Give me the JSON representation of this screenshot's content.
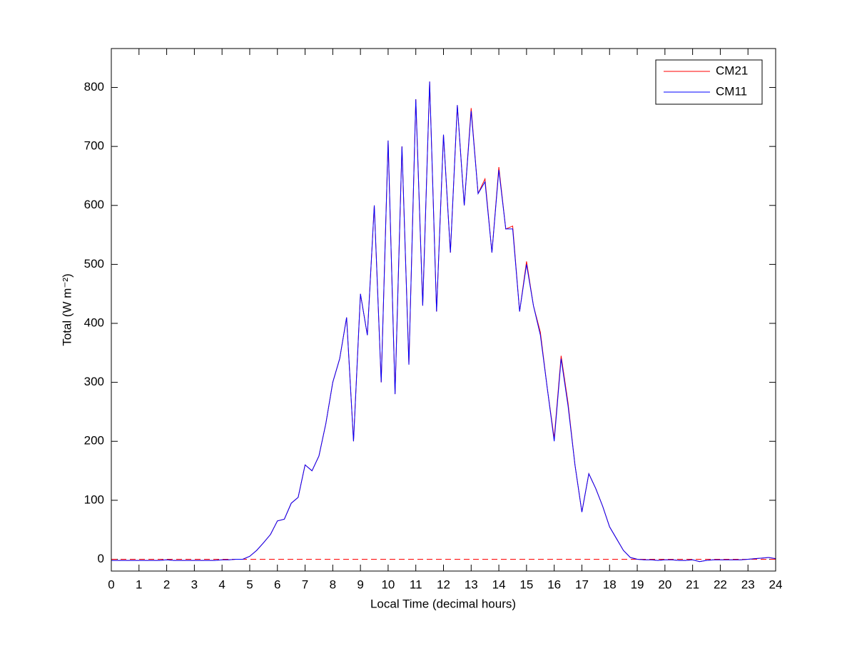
{
  "chart_data": {
    "type": "line",
    "xlabel": "Local Time (decimal hours)",
    "ylabel": "Total (W m⁻²)",
    "x": [
      0,
      0.25,
      0.5,
      0.75,
      1,
      1.25,
      1.5,
      1.75,
      2,
      2.25,
      2.5,
      2.75,
      3,
      3.25,
      3.5,
      3.75,
      4,
      4.25,
      4.5,
      4.75,
      5,
      5.25,
      5.5,
      5.75,
      6,
      6.25,
      6.5,
      6.75,
      7,
      7.25,
      7.5,
      7.75,
      8,
      8.25,
      8.5,
      8.75,
      9,
      9.25,
      9.5,
      9.75,
      10,
      10.25,
      10.5,
      10.75,
      11,
      11.25,
      11.5,
      11.75,
      12,
      12.25,
      12.5,
      12.75,
      13,
      13.25,
      13.5,
      13.75,
      14,
      14.25,
      14.5,
      14.75,
      15,
      15.25,
      15.5,
      15.75,
      16,
      16.25,
      16.5,
      16.75,
      17,
      17.25,
      17.5,
      17.75,
      18,
      18.25,
      18.5,
      18.75,
      19,
      19.25,
      19.5,
      19.75,
      20,
      20.25,
      20.5,
      20.75,
      21,
      21.25,
      21.5,
      21.75,
      22,
      22.25,
      22.5,
      22.75,
      23,
      23.25,
      23.5,
      23.75,
      24
    ],
    "series": [
      {
        "name": "CM21",
        "color": "#ff0000",
        "values": [
          -2,
          -2,
          -2,
          -2,
          -2,
          -2,
          -2,
          -2,
          -1,
          -2,
          -2,
          -2,
          -2,
          -2,
          -2,
          -2,
          -1,
          -1,
          0,
          0,
          5,
          15,
          28,
          42,
          65,
          68,
          95,
          105,
          160,
          150,
          175,
          230,
          300,
          340,
          410,
          200,
          450,
          380,
          600,
          300,
          710,
          280,
          700,
          330,
          780,
          430,
          810,
          420,
          720,
          520,
          770,
          600,
          765,
          620,
          645,
          520,
          665,
          560,
          565,
          420,
          505,
          430,
          385,
          290,
          205,
          345,
          265,
          160,
          80,
          145,
          120,
          90,
          55,
          35,
          15,
          3,
          0,
          -1,
          -1,
          -2,
          -1,
          -1,
          -2,
          -2,
          -1,
          -4,
          -2,
          -1,
          -1,
          -1,
          -1,
          -1,
          0,
          1,
          2,
          3,
          1
        ]
      },
      {
        "name": "CM11",
        "color": "#0000ff",
        "values": [
          -2,
          -2,
          -2,
          -2,
          -2,
          -2,
          -2,
          -2,
          -1,
          -2,
          -2,
          -2,
          -2,
          -2,
          -2,
          -2,
          -1,
          -1,
          0,
          0,
          5,
          15,
          28,
          42,
          65,
          68,
          95,
          105,
          160,
          150,
          175,
          230,
          300,
          340,
          410,
          200,
          450,
          380,
          600,
          300,
          710,
          280,
          700,
          330,
          780,
          430,
          810,
          420,
          720,
          520,
          770,
          600,
          760,
          620,
          640,
          520,
          660,
          560,
          560,
          420,
          500,
          430,
          380,
          290,
          200,
          340,
          260,
          160,
          80,
          145,
          120,
          90,
          55,
          35,
          15,
          3,
          0,
          -1,
          -1,
          -2,
          -1,
          -1,
          -2,
          -2,
          -1,
          -4,
          -2,
          -1,
          -1,
          -1,
          -1,
          -1,
          0,
          1,
          2,
          3,
          1
        ]
      }
    ],
    "xlim": [
      0,
      24
    ],
    "xticks": [
      0,
      1,
      2,
      3,
      4,
      5,
      6,
      7,
      8,
      9,
      10,
      11,
      12,
      13,
      14,
      15,
      16,
      17,
      18,
      19,
      20,
      21,
      22,
      23,
      24
    ],
    "ylim": [
      -20,
      866
    ],
    "yticks": [
      0,
      100,
      200,
      300,
      400,
      500,
      600,
      700,
      800
    ],
    "reference_line": {
      "value": 0,
      "color": "#ff0000"
    },
    "legend": "top-right"
  }
}
